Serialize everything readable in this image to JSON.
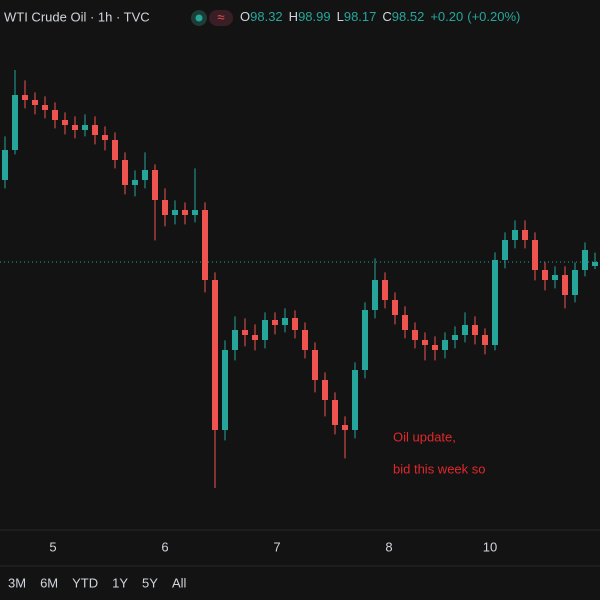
{
  "chart_data": {
    "type": "candlestick",
    "title": "WTI Crude Oil · 1h · TVC",
    "ohlc_labels": [
      "O",
      "H",
      "L",
      "C"
    ],
    "change": "+0.20",
    "change_pct": "(+0.20%)",
    "annotation": [
      "Oil update,",
      "bid this week so"
    ],
    "up_color": "#26a69a",
    "down_color": "#ef5350",
    "open": [
      102.62,
      104.12,
      106.87,
      106.62,
      106.37,
      106.12,
      105.62,
      105.37,
      105.12,
      105.37,
      104.87,
      104.62,
      103.62,
      102.37,
      102.62,
      103.12,
      101.62,
      100.87,
      101.12,
      100.87,
      101.12,
      97.62,
      90.12,
      94.12,
      95.12,
      94.87,
      94.62,
      95.62,
      95.37,
      95.72,
      95.12,
      94.12,
      92.62,
      91.62,
      90.37,
      90.12,
      93.12,
      96.12,
      97.62,
      96.62,
      95.87,
      95.12,
      94.62,
      94.37,
      94.12,
      94.62,
      94.87,
      95.37,
      94.87,
      94.37,
      98.62,
      99.62,
      100.12,
      99.62,
      98.12,
      97.62,
      97.87,
      96.87,
      98.12,
      98.32
    ],
    "high": [
      104.8,
      108.12,
      107.6,
      107.0,
      106.8,
      106.5,
      106.0,
      105.8,
      105.9,
      105.8,
      105.3,
      105.0,
      104.0,
      103.1,
      104.0,
      103.4,
      102.2,
      101.6,
      101.5,
      103.2,
      101.5,
      98.0,
      94.6,
      95.8,
      95.7,
      95.4,
      96.0,
      96.0,
      96.2,
      96.1,
      95.5,
      94.5,
      93.0,
      92.0,
      90.8,
      93.5,
      96.5,
      98.7,
      98.0,
      97.0,
      96.3,
      95.5,
      95.0,
      94.8,
      95.0,
      95.3,
      96.0,
      95.8,
      95.2,
      99.0,
      100.0,
      100.6,
      100.6,
      100.0,
      98.5,
      98.3,
      98.3,
      98.5,
      99.5,
      98.99
    ],
    "low": [
      102.2,
      103.9,
      106.2,
      105.9,
      105.7,
      105.2,
      104.9,
      104.7,
      104.8,
      104.4,
      104.1,
      103.2,
      101.9,
      101.8,
      102.2,
      99.6,
      100.3,
      100.4,
      100.4,
      100.5,
      97.0,
      87.22,
      89.6,
      93.6,
      94.3,
      94.1,
      94.2,
      94.9,
      95.0,
      94.7,
      93.7,
      92.0,
      90.8,
      89.9,
      88.7,
      89.7,
      92.7,
      95.7,
      96.2,
      95.4,
      94.7,
      94.2,
      93.6,
      93.6,
      93.7,
      94.2,
      94.5,
      94.4,
      93.9,
      94.1,
      98.2,
      99.2,
      99.2,
      97.6,
      97.1,
      97.2,
      96.2,
      96.5,
      97.8,
      98.17
    ],
    "close": [
      104.12,
      106.87,
      106.62,
      106.37,
      106.12,
      105.62,
      105.37,
      105.12,
      105.37,
      104.87,
      104.62,
      103.62,
      102.37,
      102.62,
      103.12,
      101.62,
      100.87,
      101.12,
      100.87,
      101.12,
      97.62,
      90.12,
      94.12,
      95.12,
      94.87,
      94.62,
      95.62,
      95.37,
      95.72,
      95.12,
      94.12,
      92.62,
      91.62,
      90.37,
      90.12,
      93.12,
      96.12,
      97.62,
      96.62,
      95.87,
      95.12,
      94.62,
      94.37,
      94.12,
      94.62,
      94.87,
      95.37,
      94.87,
      94.37,
      98.62,
      99.62,
      100.12,
      99.62,
      98.12,
      97.62,
      97.87,
      96.87,
      98.12,
      99.12,
      98.52
    ],
    "xlim": [
      -0.5,
      59.5
    ],
    "xticks": [
      {
        "value": 4.8,
        "label": "5"
      },
      {
        "value": 16,
        "label": "6"
      },
      {
        "value": 27.2,
        "label": "7"
      },
      {
        "value": 38.4,
        "label": "8"
      },
      {
        "value": 48.5,
        "label": "10"
      }
    ],
    "ylim": [
      85.12,
      110.12
    ]
  },
  "toolbar": {
    "ranges": [
      "3M",
      "6M",
      "YTD",
      "1Y",
      "5Y",
      "All"
    ]
  }
}
